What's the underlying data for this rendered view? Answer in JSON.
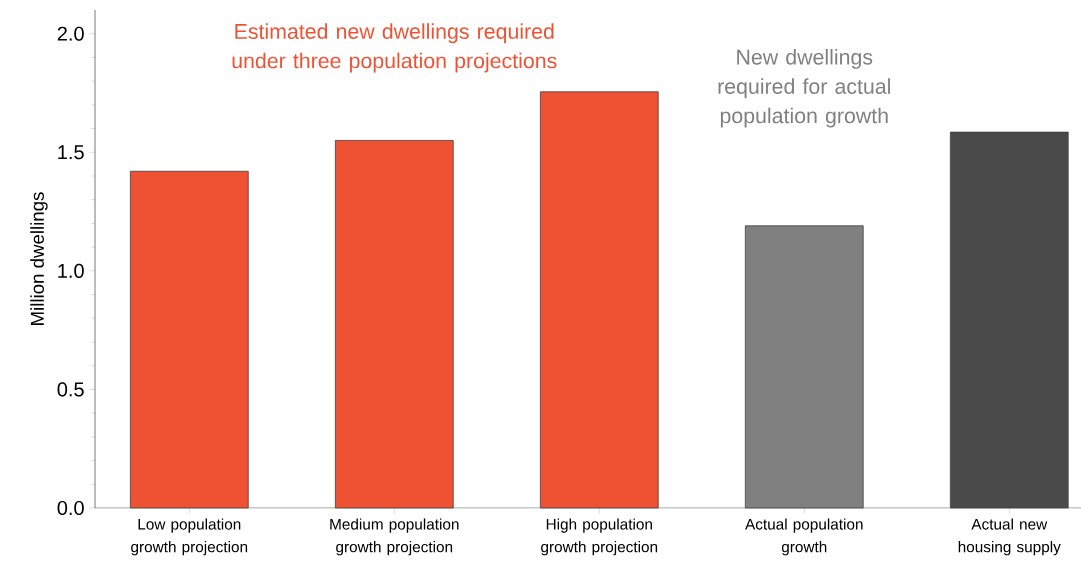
{
  "chart_data": {
    "type": "bar",
    "ylabel": "Million dwellings",
    "categories": [
      "Low population growth projection",
      "Medium population growth projection",
      "High population growth projection",
      "Actual population growth",
      "Actual new housing supply"
    ],
    "values": [
      1.42,
      1.55,
      1.755,
      1.19,
      1.585
    ],
    "colors": [
      "#ef5233",
      "#ef5233",
      "#ef5233",
      "#808080",
      "#4a4a4a"
    ],
    "ylim": [
      0,
      2.1
    ],
    "yticks": [
      {
        "value": 0,
        "label": "0.0"
      },
      0.5,
      {
        "value": 1,
        "label": "1.0"
      },
      1.5,
      {
        "value": 2,
        "label": "2.0"
      }
    ],
    "annotations": [
      "Estimated new dwellings required under three population projections",
      "New dwellings required for actual population growth"
    ],
    "grid": false
  }
}
